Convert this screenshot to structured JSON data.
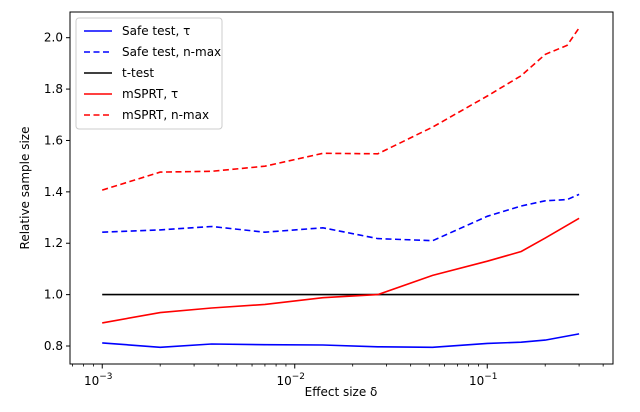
{
  "chart_data": {
    "type": "line",
    "xscale": "log",
    "xlabel": "Effect size δ",
    "ylabel": "Relative sample size",
    "xlim": [
      0.00068,
      0.45
    ],
    "ylim": [
      0.73,
      2.1
    ],
    "grid": false,
    "legend_position": "top-left",
    "xticks": [
      {
        "value": 0.001,
        "base": "10",
        "exp": "−3"
      },
      {
        "value": 0.01,
        "base": "10",
        "exp": "−2"
      },
      {
        "value": 0.1,
        "base": "10",
        "exp": "−1"
      }
    ],
    "yticks": [
      {
        "value": 0.8,
        "label": "0.8"
      },
      {
        "value": 1.0,
        "label": "1.0"
      },
      {
        "value": 1.2,
        "label": "1.2"
      },
      {
        "value": 1.4,
        "label": "1.4"
      },
      {
        "value": 1.6,
        "label": "1.6"
      },
      {
        "value": 1.8,
        "label": "1.8"
      },
      {
        "value": 2.0,
        "label": "2.0"
      }
    ],
    "series": [
      {
        "name": "Safe test, τ",
        "color": "#0000ff",
        "dash": "solid",
        "x": [
          0.001,
          0.002,
          0.0037,
          0.007,
          0.014,
          0.027,
          0.052,
          0.1,
          0.15,
          0.2,
          0.3
        ],
        "y": [
          0.812,
          0.795,
          0.808,
          0.805,
          0.804,
          0.797,
          0.795,
          0.81,
          0.815,
          0.823,
          0.847
        ]
      },
      {
        "name": "Safe test, n-max",
        "color": "#0000ff",
        "dash": "dashed",
        "x": [
          0.001,
          0.002,
          0.0037,
          0.007,
          0.014,
          0.027,
          0.052,
          0.1,
          0.15,
          0.2,
          0.26,
          0.3
        ],
        "y": [
          1.243,
          1.252,
          1.265,
          1.243,
          1.26,
          1.218,
          1.21,
          1.305,
          1.345,
          1.365,
          1.37,
          1.39
        ]
      },
      {
        "name": "t-test",
        "color": "#000000",
        "dash": "solid",
        "x": [
          0.001,
          0.3
        ],
        "y": [
          1.0,
          1.0
        ]
      },
      {
        "name": "mSPRT, τ",
        "color": "#ff0000",
        "dash": "solid",
        "x": [
          0.001,
          0.002,
          0.0037,
          0.007,
          0.014,
          0.027,
          0.052,
          0.1,
          0.15,
          0.2,
          0.3
        ],
        "y": [
          0.89,
          0.93,
          0.948,
          0.962,
          0.988,
          1.0,
          1.075,
          1.13,
          1.168,
          1.22,
          1.297
        ]
      },
      {
        "name": "mSPRT, n-max",
        "color": "#ff0000",
        "dash": "dashed",
        "x": [
          0.001,
          0.002,
          0.0037,
          0.007,
          0.014,
          0.027,
          0.052,
          0.1,
          0.15,
          0.2,
          0.26,
          0.3
        ],
        "y": [
          1.407,
          1.477,
          1.48,
          1.5,
          1.55,
          1.548,
          1.652,
          1.773,
          1.852,
          1.935,
          1.97,
          2.038
        ]
      }
    ]
  }
}
